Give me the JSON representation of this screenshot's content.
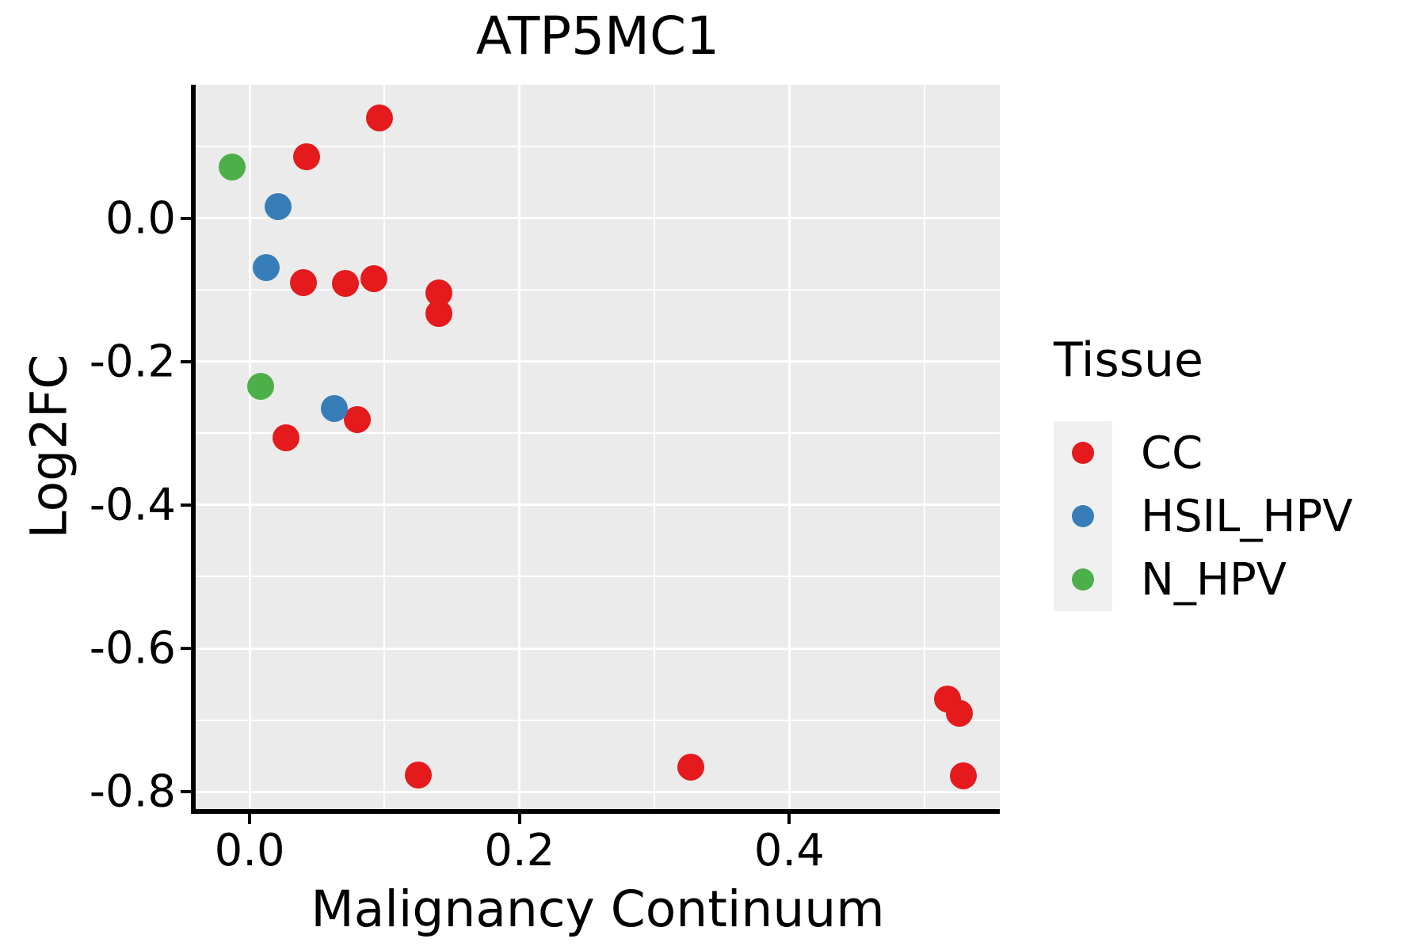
{
  "title": "ATP5MC1",
  "axes": {
    "x": {
      "label": "Malignancy Continuum",
      "ticks": [
        {
          "value": 0.0,
          "label": "0.0"
        },
        {
          "value": 0.2,
          "label": "0.2"
        },
        {
          "value": 0.4,
          "label": "0.4"
        }
      ],
      "minor": [
        0.1,
        0.3,
        0.5
      ]
    },
    "y": {
      "label": "Log2FC",
      "ticks": [
        {
          "value": 0.0,
          "label": "0.0"
        },
        {
          "value": -0.2,
          "label": "-0.2"
        },
        {
          "value": -0.4,
          "label": "-0.4"
        },
        {
          "value": -0.6,
          "label": "-0.6"
        },
        {
          "value": -0.8,
          "label": "-0.8"
        }
      ],
      "minor": [
        0.1,
        -0.1,
        -0.3,
        -0.5,
        -0.7
      ]
    }
  },
  "legend": {
    "title": "Tissue",
    "items": [
      {
        "label": "CC",
        "color": "#E41A1C"
      },
      {
        "label": "HSIL_HPV",
        "color": "#377EB8"
      },
      {
        "label": "N_HPV",
        "color": "#4DAF4A"
      }
    ]
  },
  "colors": {
    "panel_bg": "#EBEBEB",
    "grid_major": "#FFFFFF",
    "grid_minor": "#FFFFFF",
    "axis_line": "#000000",
    "legend_key_bg": "#F0F0F0",
    "cc": "#E41A1C",
    "hsil_hpv": "#377EB8",
    "n_hpv": "#4DAF4A"
  },
  "chart_data": {
    "type": "scatter",
    "title": "ATP5MC1",
    "xlabel": "Malignancy Continuum",
    "ylabel": "Log2FC",
    "xlim": [
      -0.04,
      0.556
    ],
    "ylim": [
      -0.824,
      0.186
    ],
    "x_major_ticks": [
      0.0,
      0.2,
      0.4
    ],
    "x_minor_gridlines": [
      0.1,
      0.3,
      0.5
    ],
    "y_major_ticks": [
      0.0,
      -0.2,
      -0.4,
      -0.6,
      -0.8
    ],
    "y_minor_gridlines": [
      0.1,
      -0.1,
      -0.3,
      -0.5,
      -0.7
    ],
    "grid": "on",
    "legend_title": "Tissue",
    "legend_position": "right",
    "series": [
      {
        "name": "CC",
        "color": "#E41A1C",
        "points": [
          [
            0.096,
            0.14
          ],
          [
            0.042,
            0.086
          ],
          [
            0.04,
            -0.09
          ],
          [
            0.071,
            -0.091
          ],
          [
            0.092,
            -0.084
          ],
          [
            0.14,
            -0.104
          ],
          [
            0.14,
            -0.133
          ],
          [
            0.08,
            -0.281
          ],
          [
            0.027,
            -0.306
          ],
          [
            0.125,
            -0.777
          ],
          [
            0.327,
            -0.765
          ],
          [
            0.517,
            -0.671
          ],
          [
            0.526,
            -0.69
          ],
          [
            0.529,
            -0.778
          ]
        ]
      },
      {
        "name": "HSIL_HPV",
        "color": "#377EB8",
        "points": [
          [
            0.021,
            0.016
          ],
          [
            0.012,
            -0.069
          ],
          [
            0.063,
            -0.266
          ]
        ]
      },
      {
        "name": "N_HPV",
        "color": "#4DAF4A",
        "points": [
          [
            -0.013,
            0.071
          ],
          [
            0.008,
            -0.235
          ]
        ]
      }
    ]
  }
}
